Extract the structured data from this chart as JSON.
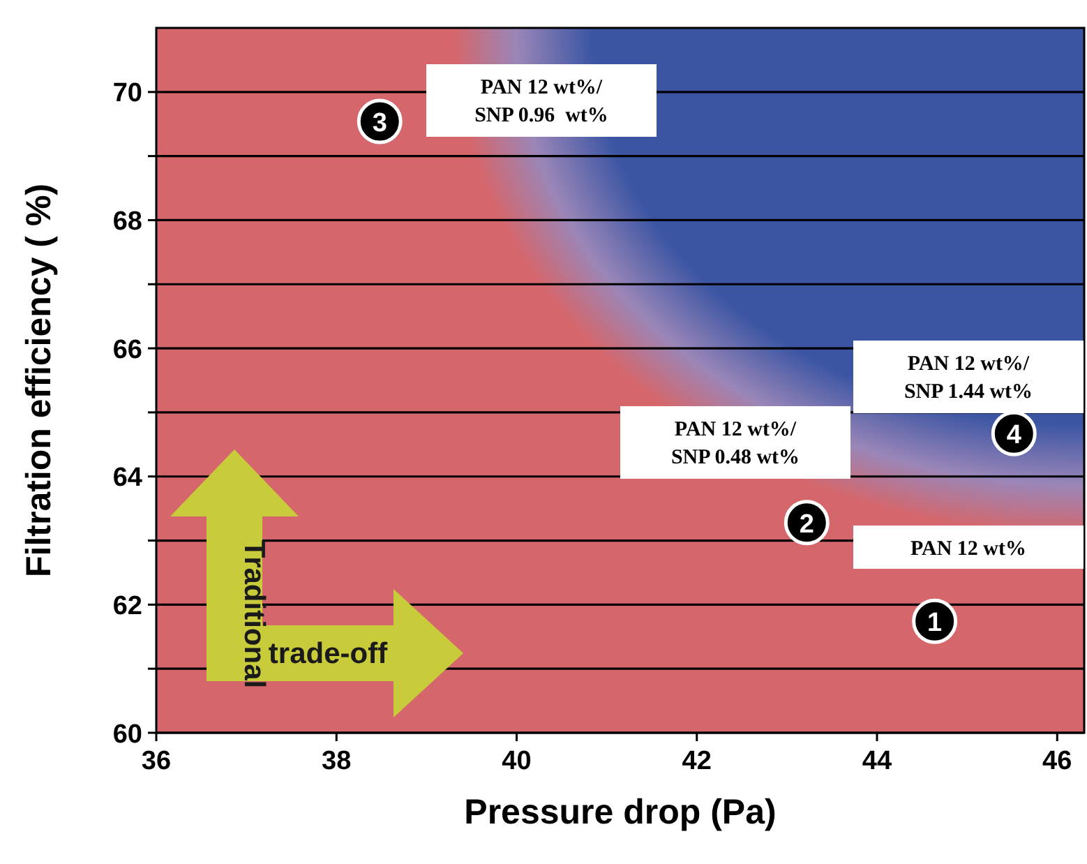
{
  "chart_data": {
    "type": "scatter",
    "xlabel": "Pressure drop (Pa)",
    "ylabel": "Filtration efficiency ( %)",
    "x": [
      44.64,
      43.22,
      38.48,
      45.52
    ],
    "series": [
      {
        "color": "#000000",
        "values": [
          61.74,
          63.28,
          69.54,
          64.67
        ]
      }
    ],
    "xlim": [
      36,
      46.3
    ],
    "ylim": [
      60,
      71
    ],
    "xticks": [
      36,
      38,
      40,
      42,
      44,
      46
    ],
    "yticks": [
      60,
      {
        "value": 61,
        "label": null
      },
      62,
      {
        "value": 63,
        "label": null
      },
      64,
      {
        "value": 65,
        "label": null
      },
      66,
      {
        "value": 67,
        "label": null
      },
      68,
      {
        "value": 69,
        "label": null
      },
      70
    ],
    "grid": "y",
    "marker": "circle",
    "annotations": [
      "PAN 12 wt%",
      "PAN 12 wt%/\nSNP 0.48 wt%",
      "PAN 12 wt%/\nSNP 0.96  wt%",
      "PAN 12 wt%/\nSNP 1.44 wt%",
      "Traditional",
      "trade-off",
      {
        "text": "1",
        "x": 44.64,
        "y": 61.74
      },
      {
        "text": "2",
        "x": 43.22,
        "y": 63.28
      },
      {
        "text": "3",
        "x": 38.48,
        "y": 69.54
      },
      {
        "text": "4",
        "x": 45.52,
        "y": 64.67
      }
    ]
  }
}
